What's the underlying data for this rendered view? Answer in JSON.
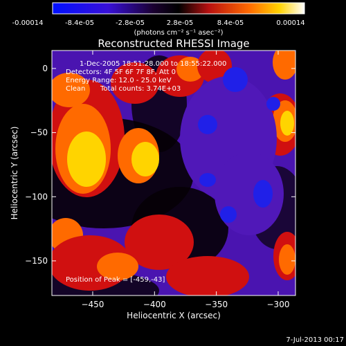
{
  "chart_data": {
    "type": "heatmap",
    "title": "Reconstructed RHESSI Image",
    "xlabel": "Heliocentric X (arcsec)",
    "ylabel": "Heliocentric Y (arcsec)",
    "xlim": [
      -483,
      -286
    ],
    "ylim": [
      -177,
      14
    ],
    "xticks": [
      -450,
      -400,
      -350,
      -300
    ],
    "yticks": [
      0,
      -50,
      -100,
      -150
    ],
    "colorbar": {
      "ticks": [
        "-0.00014",
        "-8.4e-05",
        "-2.8e-05",
        "2.8e-05",
        "8.4e-05",
        "0.00014"
      ],
      "units_label": "(photons cm⁻² s⁻¹ asec⁻²)",
      "range": [
        -0.00014,
        0.00014
      ],
      "colormap": [
        "#1010ff",
        "#5a10c8",
        "#000000",
        "#c81010",
        "#ff5a00",
        "#ffd000",
        "#ffffff"
      ]
    },
    "peak_position": [
      -459,
      -43
    ]
  },
  "annotations": {
    "time": "1-Dec-2005 18:51:28.000 to 18:55:22.000",
    "detectors": "Detectors: 4F 5F 6F 7F 8F, Att 0",
    "energy": "Energy Range: 12.0 - 25.0 keV",
    "method": "Clean",
    "counts": "Total counts: 3.74E+03",
    "peak": "Position of Peak = [-459,-43]"
  },
  "footer": {
    "date": "7-Jul-2013 00:17"
  }
}
